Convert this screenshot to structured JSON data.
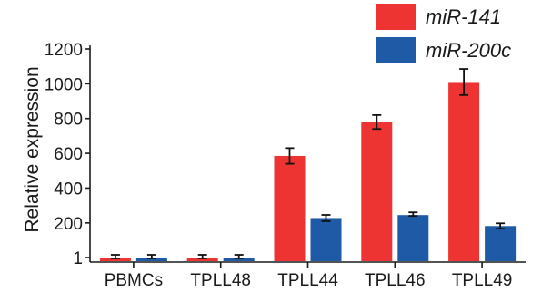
{
  "chart_data": {
    "type": "bar",
    "title": "",
    "xlabel": "",
    "ylabel": "Relative expression",
    "categories": [
      "PBMCs",
      "TPLL48",
      "TPLL44",
      "TPLL46",
      "TPLL49"
    ],
    "series": [
      {
        "name": "miR-141",
        "color": "#ee3333",
        "values": [
          1,
          1,
          585,
          780,
          1010
        ],
        "errors": [
          5,
          5,
          45,
          40,
          75
        ]
      },
      {
        "name": "miR-200c",
        "color": "#1f5aa6",
        "values": [
          1,
          1,
          228,
          245,
          182
        ],
        "errors": [
          5,
          5,
          18,
          5,
          15
        ]
      }
    ],
    "y_ticks": [
      1,
      200,
      400,
      600,
      800,
      1000,
      1200
    ],
    "y_tick_labels": [
      "1",
      "200",
      "400",
      "600",
      "800",
      "1000",
      "1200"
    ],
    "ylim": [
      -40,
      1260
    ],
    "grid": false,
    "legend_position": "top-right"
  }
}
